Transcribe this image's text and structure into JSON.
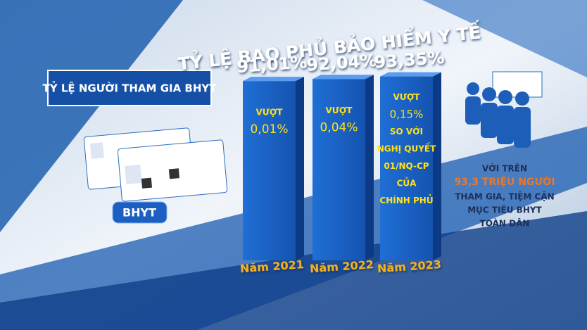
{
  "chart_data": {
    "type": "bar",
    "title": "TỶ LỆ BAO PHỦ BẢO HIỂM Y TẾ",
    "categories": [
      "Năm 2021",
      "Năm 2022",
      "Năm 2023"
    ],
    "values": [
      91.01,
      92.04,
      93.35
    ],
    "value_labels": [
      "91,01%",
      "92,04%",
      "93,35%"
    ],
    "color": "#1a64c8",
    "annotations": [
      [
        "VƯỢT",
        "0,01%"
      ],
      [
        "VƯỢT",
        "0,04%"
      ],
      [
        "VƯỢT",
        "0,15%",
        "SO VỚI",
        "NGHỊ QUYẾT",
        "01/NQ-CP",
        "CỦA",
        "CHÍNH PHỦ"
      ]
    ]
  },
  "left_panel": {
    "title": "TỶ LỆ NGƯỜI THAM GIA BHYT",
    "badge": "BHYT"
  },
  "right_panel": {
    "lines": [
      "VỚI TRÊN",
      "93,3 TRIỆU NGƯỜI",
      "THAM GIA, TIỆM CẬN",
      "MỤC TIÊU BHYT",
      "TOÀN DÂN"
    ]
  }
}
